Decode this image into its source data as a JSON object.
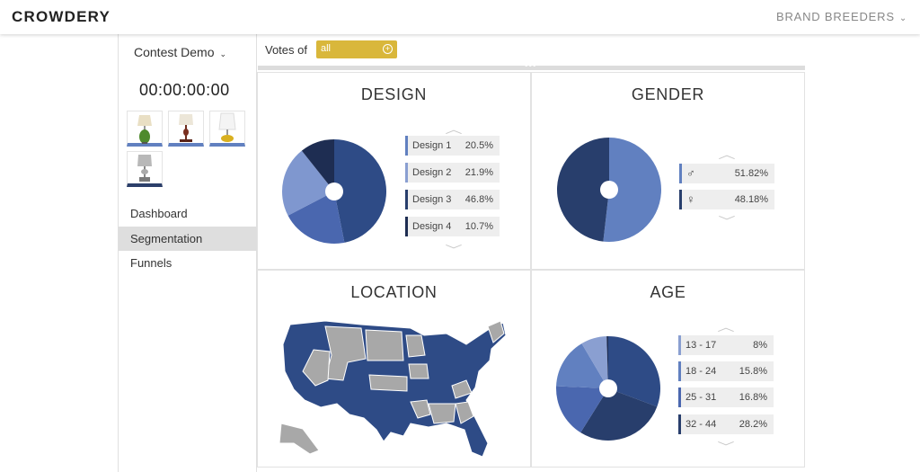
{
  "header": {
    "brand": "CROWDERY",
    "account": "BRAND BREEDERS"
  },
  "sidebar": {
    "contest": "Contest Demo",
    "timer": "00:00:00:00",
    "nav": [
      {
        "label": "Dashboard",
        "active": false
      },
      {
        "label": "Segmentation",
        "active": true
      },
      {
        "label": "Funnels",
        "active": false
      }
    ]
  },
  "filter": {
    "label": "Votes of",
    "value": "all"
  },
  "colors": {
    "accent": "#d9b73b",
    "c1": "#6180c0",
    "c2": "#283e6c",
    "c3": "#8a9fd1",
    "c4": "#1e2d52"
  },
  "panels": {
    "design": {
      "title": "DESIGN",
      "legend": [
        {
          "label": "Design 1",
          "value": "20.5%",
          "pct": 20.5
        },
        {
          "label": "Design 2",
          "value": "21.9%",
          "pct": 21.9
        },
        {
          "label": "Design 3",
          "value": "46.8%",
          "pct": 46.8
        },
        {
          "label": "Design 4",
          "value": "10.7%",
          "pct": 10.7
        }
      ]
    },
    "gender": {
      "title": "GENDER",
      "legend": [
        {
          "label": "♂",
          "value": "51.82%",
          "pct": 51.82
        },
        {
          "label": "♀",
          "value": "48.18%",
          "pct": 48.18
        }
      ]
    },
    "location": {
      "title": "LOCATION"
    },
    "age": {
      "title": "AGE",
      "legend": [
        {
          "label": "13 - 17",
          "value": "8%",
          "pct": 8
        },
        {
          "label": "18 - 24",
          "value": "15.8%",
          "pct": 15.8
        },
        {
          "label": "25 - 31",
          "value": "16.8%",
          "pct": 16.8
        },
        {
          "label": "32 - 44",
          "value": "28.2%",
          "pct": 28.2
        }
      ]
    }
  }
}
